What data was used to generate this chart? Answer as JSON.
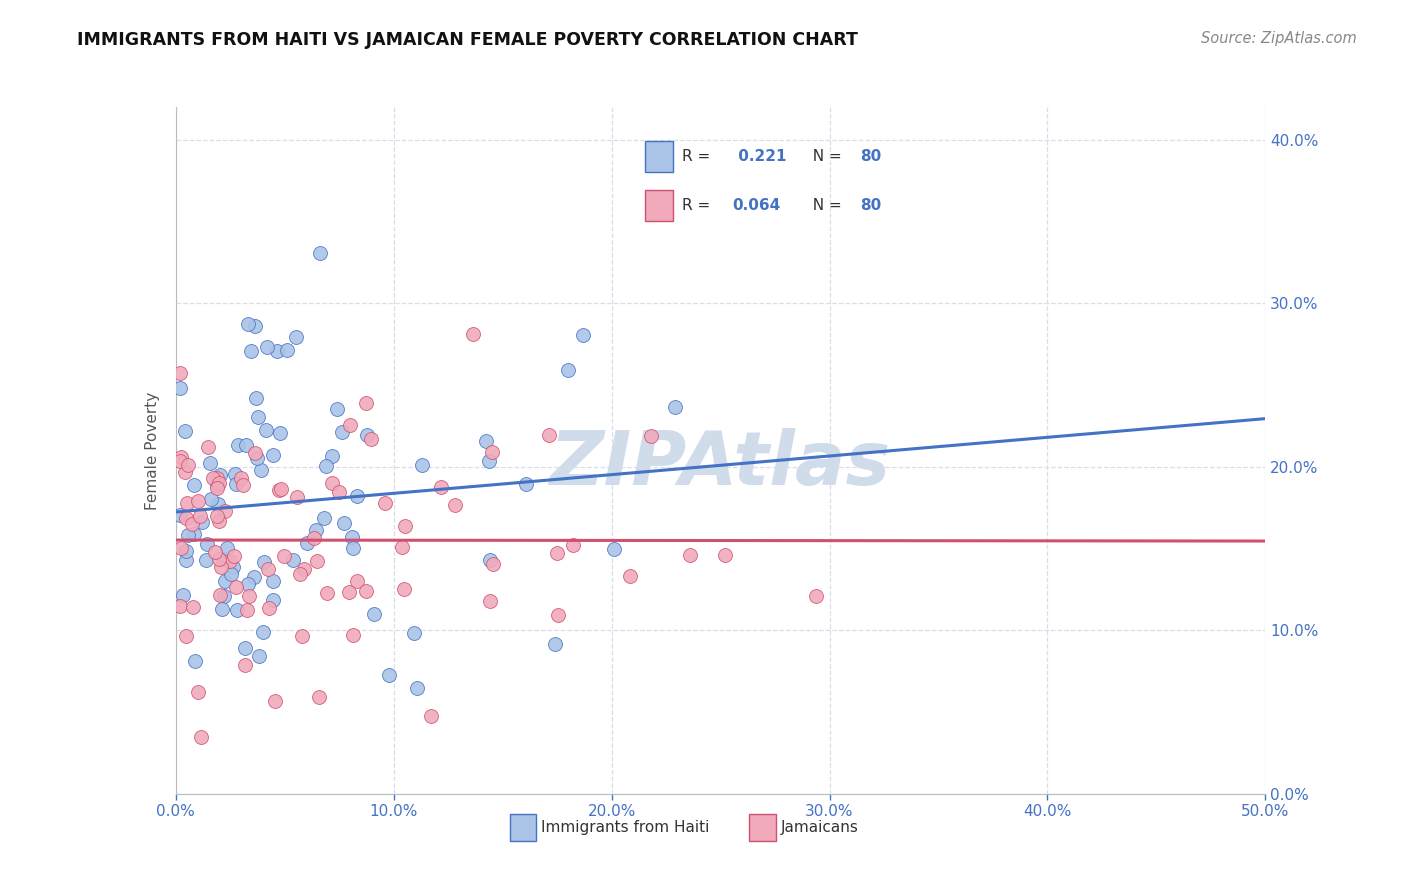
{
  "title": "IMMIGRANTS FROM HAITI VS JAMAICAN FEMALE POVERTY CORRELATION CHART",
  "source": "Source: ZipAtlas.com",
  "ylabel": "Female Poverty",
  "r_haiti": 0.221,
  "r_jamaican": 0.064,
  "n_haiti": 80,
  "n_jamaican": 80,
  "xlim": [
    0,
    0.5
  ],
  "ylim": [
    0,
    0.42
  ],
  "xticks": [
    0.0,
    0.1,
    0.2,
    0.3,
    0.4,
    0.5
  ],
  "yticks": [
    0.0,
    0.1,
    0.2,
    0.3,
    0.4
  ],
  "color_haiti": "#aac4e8",
  "color_jamaican": "#f0aabb",
  "line_color_haiti": "#4472c4",
  "line_color_jamaican": "#d05070",
  "watermark_color": "#d0dcea",
  "background_color": "#ffffff",
  "grid_color": "#d8dfe8",
  "title_color": "#111111",
  "source_color": "#888888",
  "axis_label_color": "#4472c4",
  "legend_text_color": "#333333",
  "ylabel_color": "#555555"
}
